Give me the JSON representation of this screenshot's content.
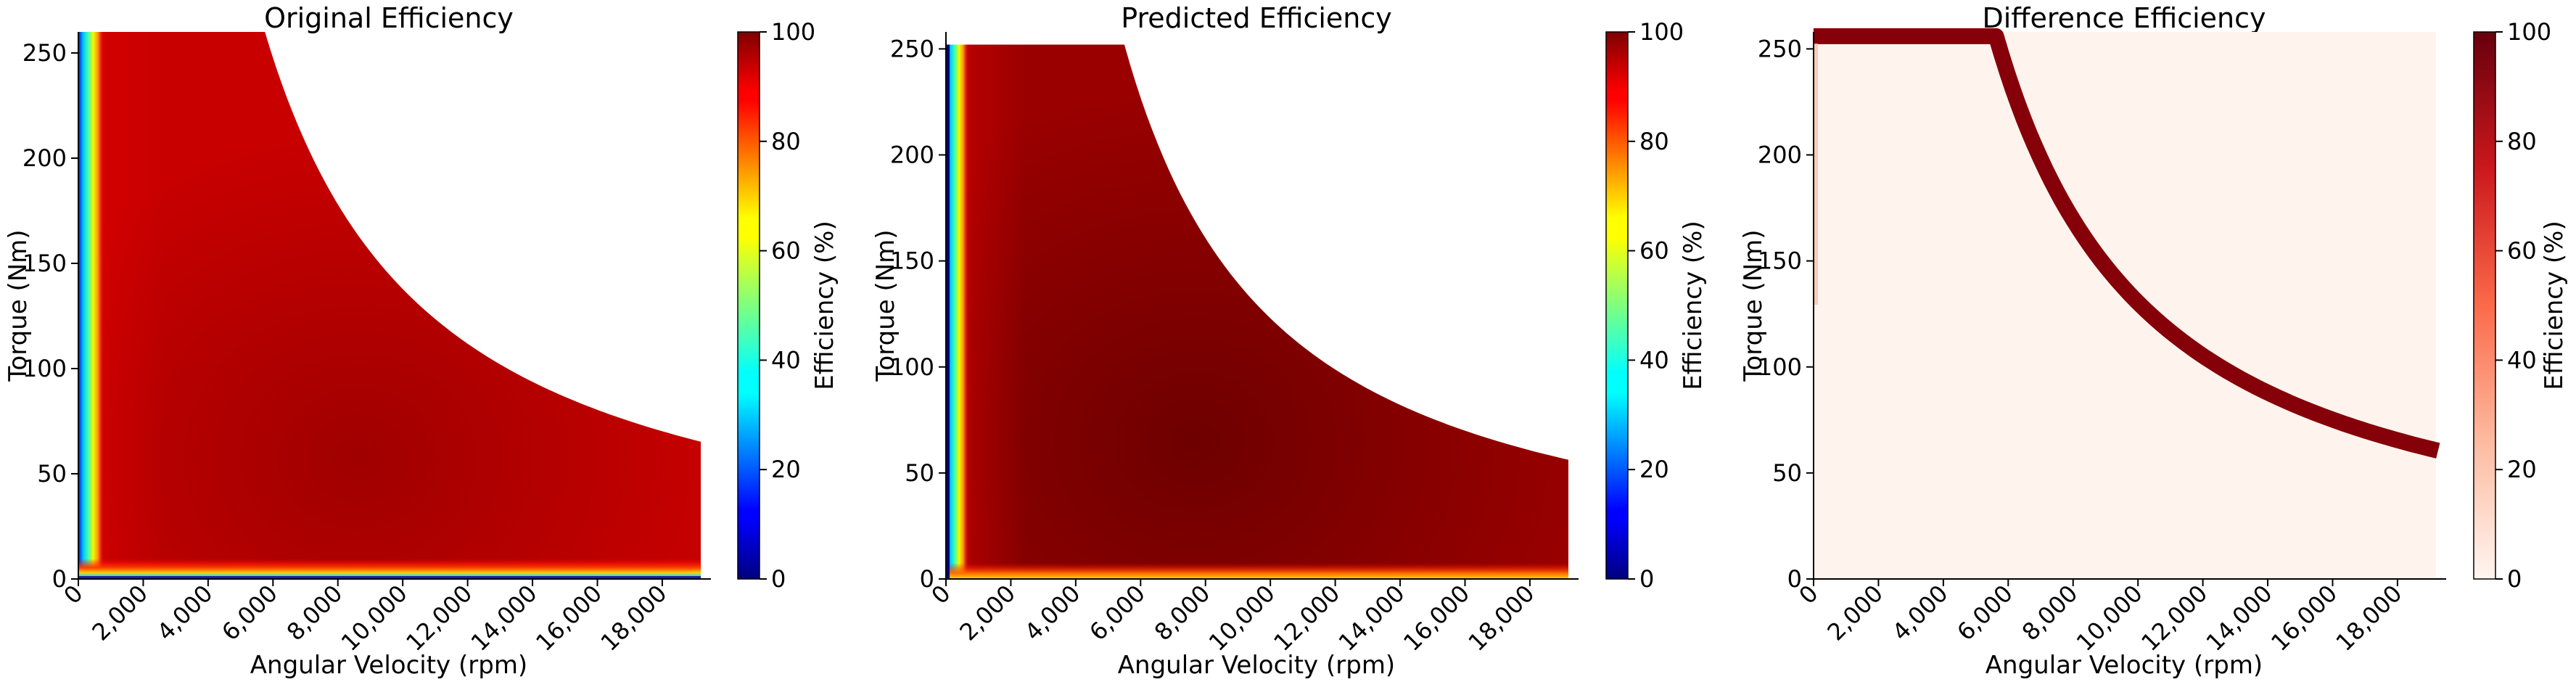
{
  "chart_data": [
    {
      "type": "heatmap",
      "title": "Original Efficiency",
      "xlabel": "Angular Velocity (rpm)",
      "ylabel": "Torque (Nm)",
      "xlim": [
        0,
        19500
      ],
      "ylim": [
        0,
        260
      ],
      "xticks": [
        0,
        2000,
        4000,
        6000,
        8000,
        10000,
        12000,
        14000,
        16000,
        18000
      ],
      "xtick_labels": [
        "0",
        "2,000",
        "4,000",
        "6,000",
        "8,000",
        "10,000",
        "12,000",
        "14,000",
        "16,000",
        "18,000"
      ],
      "yticks": [
        0,
        50,
        100,
        150,
        200,
        250
      ],
      "ytick_labels": [
        "0",
        "50",
        "100",
        "150",
        "200",
        "250"
      ],
      "colormap": "jet",
      "colorbar": {
        "label": "Efficiency (%)",
        "range": [
          0,
          100
        ],
        "ticks": [
          "0",
          "20",
          "40",
          "60",
          "80",
          "100"
        ]
      },
      "envelope": {
        "max_torque": 260,
        "corner_speed": 5750,
        "end_speed": 19250,
        "end_torque": 65
      },
      "typical_values": {
        "low_speed_edge": 30,
        "bulk": 92,
        "peak": 96,
        "low_torque_edge": 40
      }
    },
    {
      "type": "heatmap",
      "title": "Predicted Efficiency",
      "xlabel": "Angular Velocity (rpm)",
      "ylabel": "Torque (Nm)",
      "xlim": [
        0,
        19500
      ],
      "ylim": [
        0,
        258
      ],
      "xticks": [
        0,
        2000,
        4000,
        6000,
        8000,
        10000,
        12000,
        14000,
        16000,
        18000
      ],
      "xtick_labels": [
        "0",
        "2,000",
        "4,000",
        "6,000",
        "8,000",
        "10,000",
        "12,000",
        "14,000",
        "16,000",
        "18,000"
      ],
      "yticks": [
        0,
        50,
        100,
        150,
        200,
        250
      ],
      "ytick_labels": [
        "0",
        "50",
        "100",
        "150",
        "200",
        "250"
      ],
      "colormap": "jet",
      "colorbar": {
        "label": "Efficiency (%)",
        "range": [
          0,
          100
        ],
        "ticks": [
          "0",
          "20",
          "40",
          "60",
          "80",
          "100"
        ]
      },
      "envelope": {
        "max_torque": 252,
        "corner_speed": 5500,
        "end_speed": 19250,
        "end_torque": 56
      },
      "typical_values": {
        "low_speed_edge": 30,
        "bulk": 94,
        "peak": 98,
        "low_torque_edge": 80
      }
    },
    {
      "type": "heatmap",
      "title": "Difference Efficiency",
      "xlabel": "Angular Velocity (rpm)",
      "ylabel": "Torque (Nm)",
      "xlim": [
        0,
        19500
      ],
      "ylim": [
        0,
        258
      ],
      "xticks": [
        0,
        2000,
        4000,
        6000,
        8000,
        10000,
        12000,
        14000,
        16000,
        18000
      ],
      "xtick_labels": [
        "0",
        "2,000",
        "4,000",
        "6,000",
        "8,000",
        "10,000",
        "12,000",
        "14,000",
        "16,000",
        "18,000"
      ],
      "yticks": [
        0,
        50,
        100,
        150,
        200,
        250
      ],
      "ytick_labels": [
        "0",
        "50",
        "100",
        "150",
        "200",
        "250"
      ],
      "colormap": "reds",
      "colorbar": {
        "label": "Efficiency (%)",
        "range": [
          0,
          100
        ],
        "ticks": [
          "0",
          "20",
          "40",
          "60",
          "80",
          "100"
        ]
      },
      "typical_values": {
        "background": 3,
        "band": 100
      }
    }
  ]
}
